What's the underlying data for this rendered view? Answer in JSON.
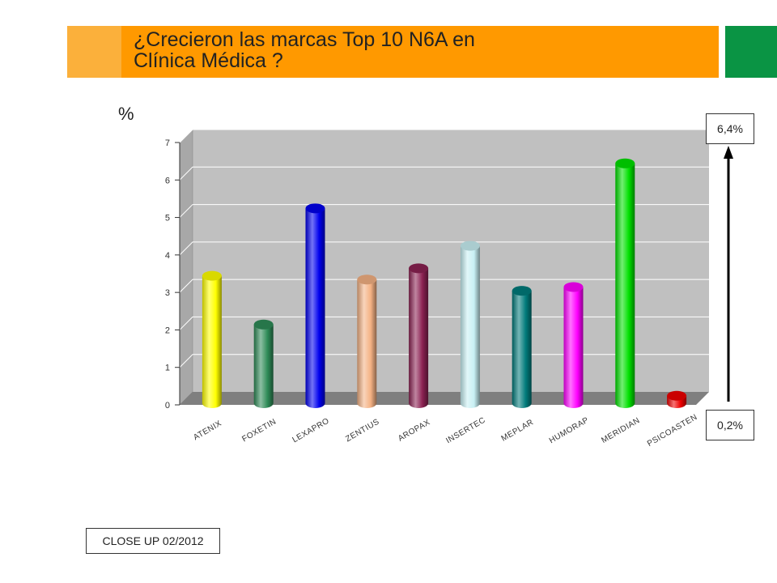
{
  "header": {
    "title_line1": "¿Crecieron las marcas Top 10 N6A en",
    "title_line2": "Clínica Médica ?"
  },
  "y_unit_label": "%",
  "range_boxes": {
    "top": "6,4%",
    "bottom": "0,2%"
  },
  "source_label": "CLOSE UP 02/2012",
  "colors": {
    "header_orange": "#ff9900",
    "header_light_orange": "#fbb03b",
    "header_green": "#0a9444"
  },
  "chart_data": {
    "type": "bar",
    "categories": [
      "ATENIX",
      "FOXETIN",
      "LEXAPRO",
      "ZENTIUS",
      "AROPAX",
      "INSERTEC",
      "MEPLAR",
      "HUMORAP",
      "MERIDIAN",
      "PSICOASTEN"
    ],
    "values": [
      3.4,
      2.1,
      5.2,
      3.3,
      3.6,
      4.2,
      3.0,
      3.1,
      6.4,
      0.2
    ],
    "colors": [
      "#ffff00",
      "#2e8b57",
      "#0000ee",
      "#f4b183",
      "#8b2252",
      "#c8f0f4",
      "#007b7b",
      "#ff00ff",
      "#00e000",
      "#ee0000"
    ],
    "ylim": [
      0,
      7
    ],
    "yticks": [
      0,
      1,
      2,
      3,
      4,
      5,
      6,
      7
    ],
    "ylabel": "%",
    "grid": true
  }
}
